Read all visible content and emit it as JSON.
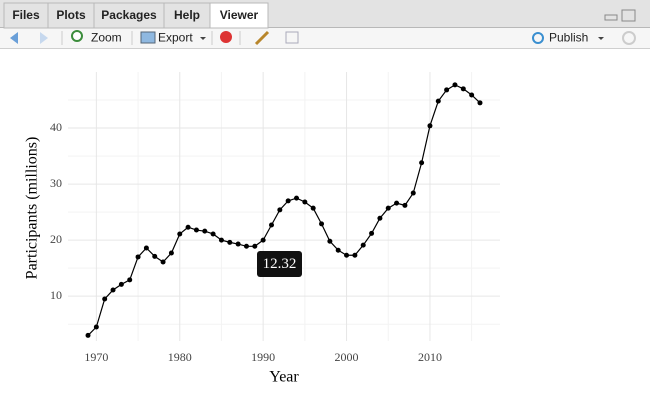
{
  "ui": {
    "tabs": [
      "Files",
      "Plots",
      "Packages",
      "Help",
      "Viewer"
    ],
    "toolbar": {
      "zoom": "Zoom",
      "export": "Export",
      "publish": "Publish"
    }
  },
  "chart_data": {
    "type": "line",
    "xlabel": "Year",
    "ylabel": "Participants (millions)",
    "annotation": "12.32",
    "x": [
      1969,
      1970,
      1971,
      1972,
      1973,
      1974,
      1975,
      1976,
      1977,
      1978,
      1979,
      1980,
      1981,
      1982,
      1983,
      1984,
      1985,
      1986,
      1987,
      1988,
      1989,
      1990,
      1991,
      1992,
      1993,
      1994,
      1995,
      1996,
      1997,
      1998,
      1999,
      2000,
      2001,
      2002,
      2003,
      2004,
      2005,
      2006,
      2007,
      2008,
      2009,
      2010,
      2011,
      2012,
      2013,
      2014,
      2015,
      2016
    ],
    "series": [
      {
        "color": "#000000",
        "values": [
          3.0,
          4.5,
          9.5,
          11.1,
          12.1,
          12.9,
          17.0,
          18.6,
          17.1,
          16.1,
          17.7,
          21.1,
          22.3,
          21.8,
          21.6,
          21.1,
          20.0,
          19.6,
          19.3,
          18.9,
          18.9,
          20.0,
          22.7,
          25.4,
          27.0,
          27.5,
          26.8,
          25.7,
          22.9,
          19.8,
          18.2,
          17.3,
          17.3,
          19.1,
          21.2,
          23.9,
          25.7,
          26.6,
          26.2,
          28.4,
          33.8,
          40.4,
          44.8,
          46.8,
          47.7,
          47.0,
          45.9,
          44.5
        ]
      }
    ],
    "xlim": [
      1966.6,
      2018.4
    ],
    "ylim": [
      2,
      50
    ],
    "xticks": [
      1970,
      1980,
      1990,
      2000,
      2010
    ],
    "yticks": [
      10,
      20,
      30,
      40
    ],
    "grid": true
  }
}
